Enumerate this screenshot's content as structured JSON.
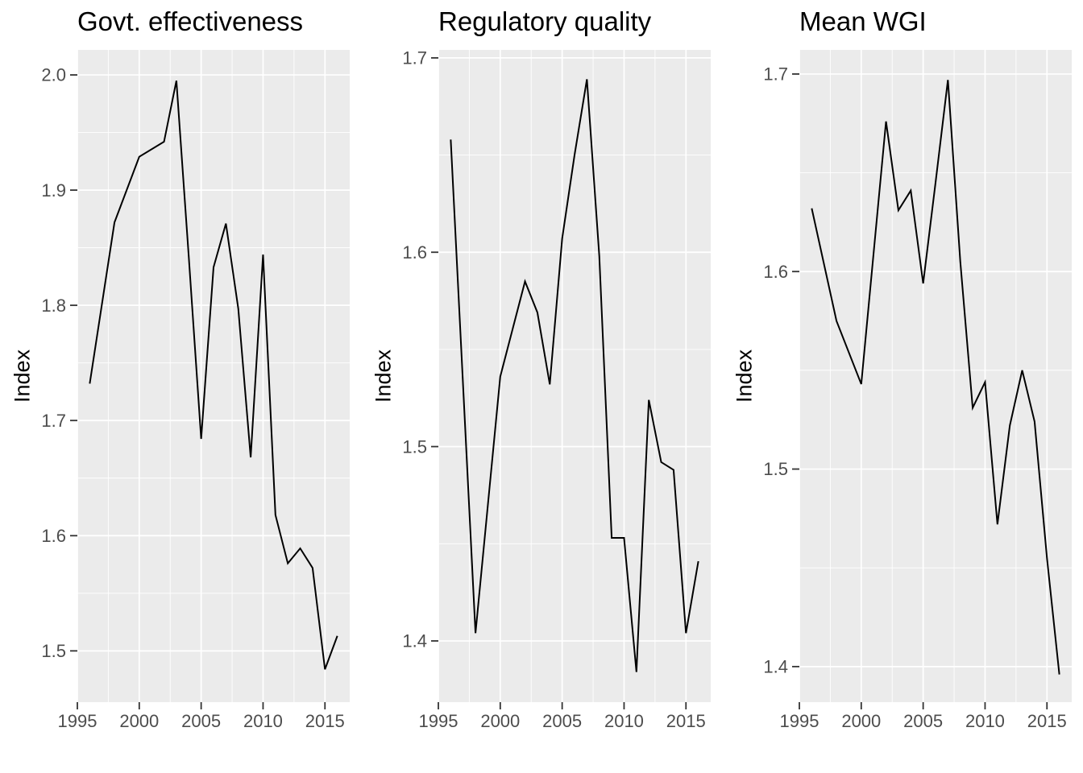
{
  "figure": {
    "background": "#FFFFFF"
  },
  "colors": {
    "panel_background": "#EBEBEB",
    "grid_major": "#FFFFFF",
    "grid_minor": "#FFFFFF",
    "series_line": "#000000",
    "tick_label": "#4D4D4D",
    "tick_mark": "#333333",
    "title_text": "#000000"
  },
  "chart_data": [
    {
      "type": "line",
      "title": "Govt. effectiveness",
      "ylabel": "Index",
      "xlabel": "",
      "legend": "none",
      "grid": true,
      "xlim": [
        1995,
        2017
      ],
      "ylim": [
        1.4555,
        2.0217
      ],
      "x": [
        1996,
        1998,
        2000,
        2002,
        2003,
        2004,
        2005,
        2006,
        2007,
        2008,
        2009,
        2010,
        2011,
        2012,
        2013,
        2014,
        2015,
        2016
      ],
      "y": [
        1.732,
        1.872,
        1.929,
        1.942,
        1.995,
        1.842,
        1.684,
        1.833,
        1.871,
        1.797,
        1.668,
        1.844,
        1.618,
        1.576,
        1.589,
        1.572,
        1.484,
        1.513
      ],
      "xticks": {
        "values": [
          1995,
          2000,
          2005,
          2010,
          2015
        ],
        "labels": [
          "1995",
          "2000",
          "2005",
          "2010",
          "2015"
        ]
      },
      "yticks": {
        "values": [
          1.5,
          1.6,
          1.7,
          1.8,
          1.9,
          2.0
        ],
        "labels": [
          "1.5",
          "1.6",
          "1.7",
          "1.8",
          "1.9",
          "2.0"
        ]
      },
      "xminor": [
        1997.5,
        2002.5,
        2007.5,
        2012.5
      ],
      "yminor": [
        1.55,
        1.65,
        1.75,
        1.85,
        1.95
      ]
    },
    {
      "type": "line",
      "title": "Regulatory quality",
      "ylabel": "Index",
      "xlabel": "",
      "legend": "none",
      "grid": true,
      "xlim": [
        1995,
        2017
      ],
      "ylim": [
        1.3685,
        1.7041
      ],
      "x": [
        1996,
        1998,
        2000,
        2002,
        2003,
        2004,
        2005,
        2006,
        2007,
        2008,
        2009,
        2010,
        2011,
        2012,
        2013,
        2014,
        2015,
        2016
      ],
      "y": [
        1.658,
        1.404,
        1.536,
        1.585,
        1.569,
        1.532,
        1.607,
        1.65,
        1.689,
        1.598,
        1.453,
        1.453,
        1.384,
        1.524,
        1.492,
        1.488,
        1.404,
        1.441
      ],
      "xticks": {
        "values": [
          1995,
          2000,
          2005,
          2010,
          2015
        ],
        "labels": [
          "1995",
          "2000",
          "2005",
          "2010",
          "2015"
        ]
      },
      "yticks": {
        "values": [
          1.4,
          1.5,
          1.6,
          1.7
        ],
        "labels": [
          "1.4",
          "1.5",
          "1.6",
          "1.7"
        ]
      },
      "xminor": [
        1997.5,
        2002.5,
        2007.5,
        2012.5
      ],
      "yminor": [
        1.45,
        1.55,
        1.65
      ]
    },
    {
      "type": "line",
      "title": "Mean WGI",
      "ylabel": "Index",
      "xlabel": "",
      "legend": "none",
      "grid": true,
      "xlim": [
        1995,
        2017
      ],
      "ylim": [
        1.382,
        1.7122
      ],
      "x": [
        1996,
        1998,
        2000,
        2002,
        2003,
        2004,
        2005,
        2006,
        2007,
        2008,
        2009,
        2010,
        2011,
        2012,
        2013,
        2014,
        2015,
        2016
      ],
      "y": [
        1.632,
        1.575,
        1.543,
        1.676,
        1.631,
        1.641,
        1.594,
        1.645,
        1.697,
        1.605,
        1.531,
        1.544,
        1.472,
        1.522,
        1.55,
        1.524,
        1.455,
        1.396
      ],
      "xticks": {
        "values": [
          1995,
          2000,
          2005,
          2010,
          2015
        ],
        "labels": [
          "1995",
          "2000",
          "2005",
          "2010",
          "2015"
        ]
      },
      "yticks": {
        "values": [
          1.4,
          1.5,
          1.6,
          1.7
        ],
        "labels": [
          "1.4",
          "1.5",
          "1.6",
          "1.7"
        ]
      },
      "xminor": [
        1997.5,
        2002.5,
        2007.5,
        2012.5
      ],
      "yminor": [
        1.45,
        1.55,
        1.65
      ]
    }
  ]
}
